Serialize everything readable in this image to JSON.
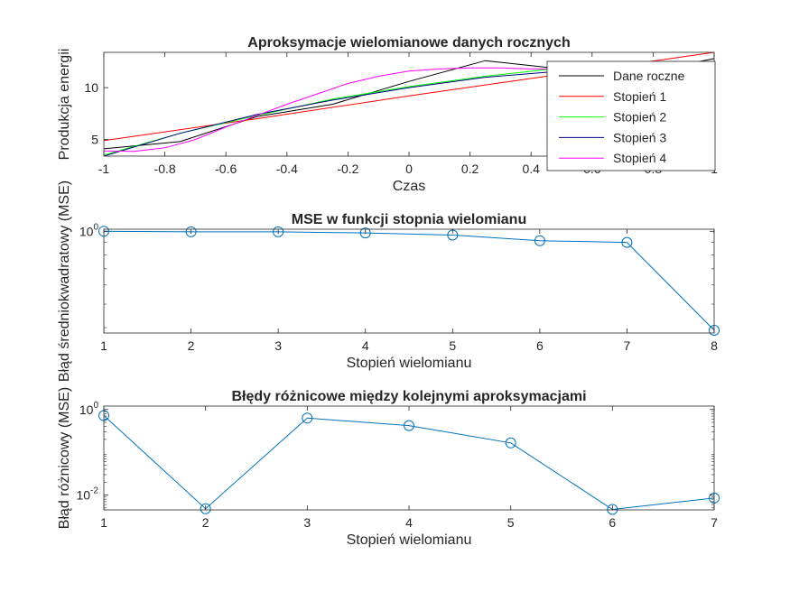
{
  "chart_data": [
    {
      "type": "line",
      "title": "Aproksymacje wielomianowe danych rocznych",
      "xlabel": "Czas",
      "ylabel": "Produkcja energii",
      "xlim": [
        -1,
        1
      ],
      "ylim": [
        3.4,
        13.4
      ],
      "xticks": [
        -1,
        -0.8,
        -0.6,
        -0.4,
        -0.2,
        0,
        0.2,
        0.4,
        0.6,
        0.8,
        1
      ],
      "xtick_labels": [
        "-1",
        "-0.8",
        "-0.6",
        "-0.4",
        "-0.2",
        "0",
        "0.2",
        "0.4",
        "0.6",
        "0.8",
        "1"
      ],
      "yticks": [
        5,
        10
      ],
      "ytick_labels": [
        "5",
        "10"
      ],
      "legend_position": "top-right",
      "series": [
        {
          "name": "Dane roczne",
          "color": "#000000",
          "x": [
            -1,
            -0.75,
            -0.5,
            -0.25,
            0,
            0.25,
            0.5,
            0.75,
            1
          ],
          "y": [
            4.1,
            4.8,
            7.2,
            8.4,
            10.6,
            12.6,
            11.8,
            11.3,
            12.8
          ]
        },
        {
          "name": "Stopień 1",
          "color": "#ff0000",
          "x": [
            -1,
            -0.5,
            0,
            0.5,
            1
          ],
          "y": [
            4.9,
            7.0,
            9.2,
            11.3,
            13.4
          ]
        },
        {
          "name": "Stopień 2",
          "color": "#00ff00",
          "x": [
            -1,
            -0.75,
            -0.5,
            -0.25,
            0,
            0.25,
            0.5,
            0.75,
            1
          ],
          "y": [
            3.5,
            5.6,
            7.3,
            8.9,
            10.1,
            11.1,
            11.9,
            12.3,
            12.5
          ]
        },
        {
          "name": "Stopień 3",
          "color": "#000080",
          "x": [
            -1,
            -0.75,
            -0.5,
            -0.25,
            0,
            0.25,
            0.5,
            0.75,
            1
          ],
          "y": [
            3.4,
            5.6,
            7.4,
            8.8,
            10.0,
            11.0,
            11.6,
            12.0,
            11.9
          ]
        },
        {
          "name": "Stopień 4",
          "color": "#ff00ff",
          "x": [
            -1,
            -0.9,
            -0.8,
            -0.7,
            -0.6,
            -0.5,
            -0.4,
            -0.3,
            -0.2,
            -0.1,
            0,
            0.1,
            0.2,
            0.3,
            0.4,
            0.5,
            0.6,
            0.7,
            0.8,
            0.9,
            1
          ],
          "y": [
            3.9,
            3.85,
            4.2,
            5.0,
            6.2,
            7.3,
            8.4,
            9.4,
            10.4,
            11.1,
            11.6,
            11.8,
            11.9,
            11.9,
            11.8,
            11.8,
            11.8,
            11.8,
            11.9,
            12.0,
            12.1
          ]
        }
      ]
    },
    {
      "type": "line",
      "title": "MSE w funkcji stopnia wielomianu",
      "xlabel": "Stopień wielomianu",
      "ylabel": "Błąd średniokwadratowy (MSE)",
      "yscale": "log",
      "xlim": [
        1,
        8
      ],
      "ylim": [
        0.38,
        1.02
      ],
      "xticks": [
        1,
        2,
        3,
        4,
        5,
        6,
        7,
        8
      ],
      "xtick_labels": [
        "1",
        "2",
        "3",
        "4",
        "5",
        "6",
        "7",
        "8"
      ],
      "yticks": [
        1
      ],
      "ytick_labels": [
        "10^0"
      ],
      "series": [
        {
          "color": "#0072bd",
          "marker": "circle",
          "x": [
            1,
            2,
            3,
            4,
            5,
            6,
            7,
            8
          ],
          "y": [
            1.0,
            0.995,
            0.995,
            0.985,
            0.965,
            0.915,
            0.9,
            0.39
          ]
        }
      ]
    },
    {
      "type": "line",
      "title": "Błędy różnicowe między kolejnymi aproksymacjami",
      "xlabel": "Stopień wielomianu",
      "ylabel": "Błąd różnicowy (MSE)",
      "yscale": "log",
      "xlim": [
        1,
        7
      ],
      "ylim": [
        0.0045,
        1.2
      ],
      "xticks": [
        1,
        2,
        3,
        4,
        5,
        6,
        7
      ],
      "xtick_labels": [
        "1",
        "2",
        "3",
        "4",
        "5",
        "6",
        "7"
      ],
      "yticks": [
        0.01,
        1
      ],
      "ytick_labels": [
        "10^-2",
        "10^0"
      ],
      "series": [
        {
          "color": "#0072bd",
          "marker": "circle",
          "x": [
            1,
            2,
            3,
            4,
            5,
            6,
            7
          ],
          "y": [
            0.72,
            0.0048,
            0.63,
            0.42,
            0.165,
            0.0046,
            0.0085
          ]
        }
      ]
    }
  ]
}
